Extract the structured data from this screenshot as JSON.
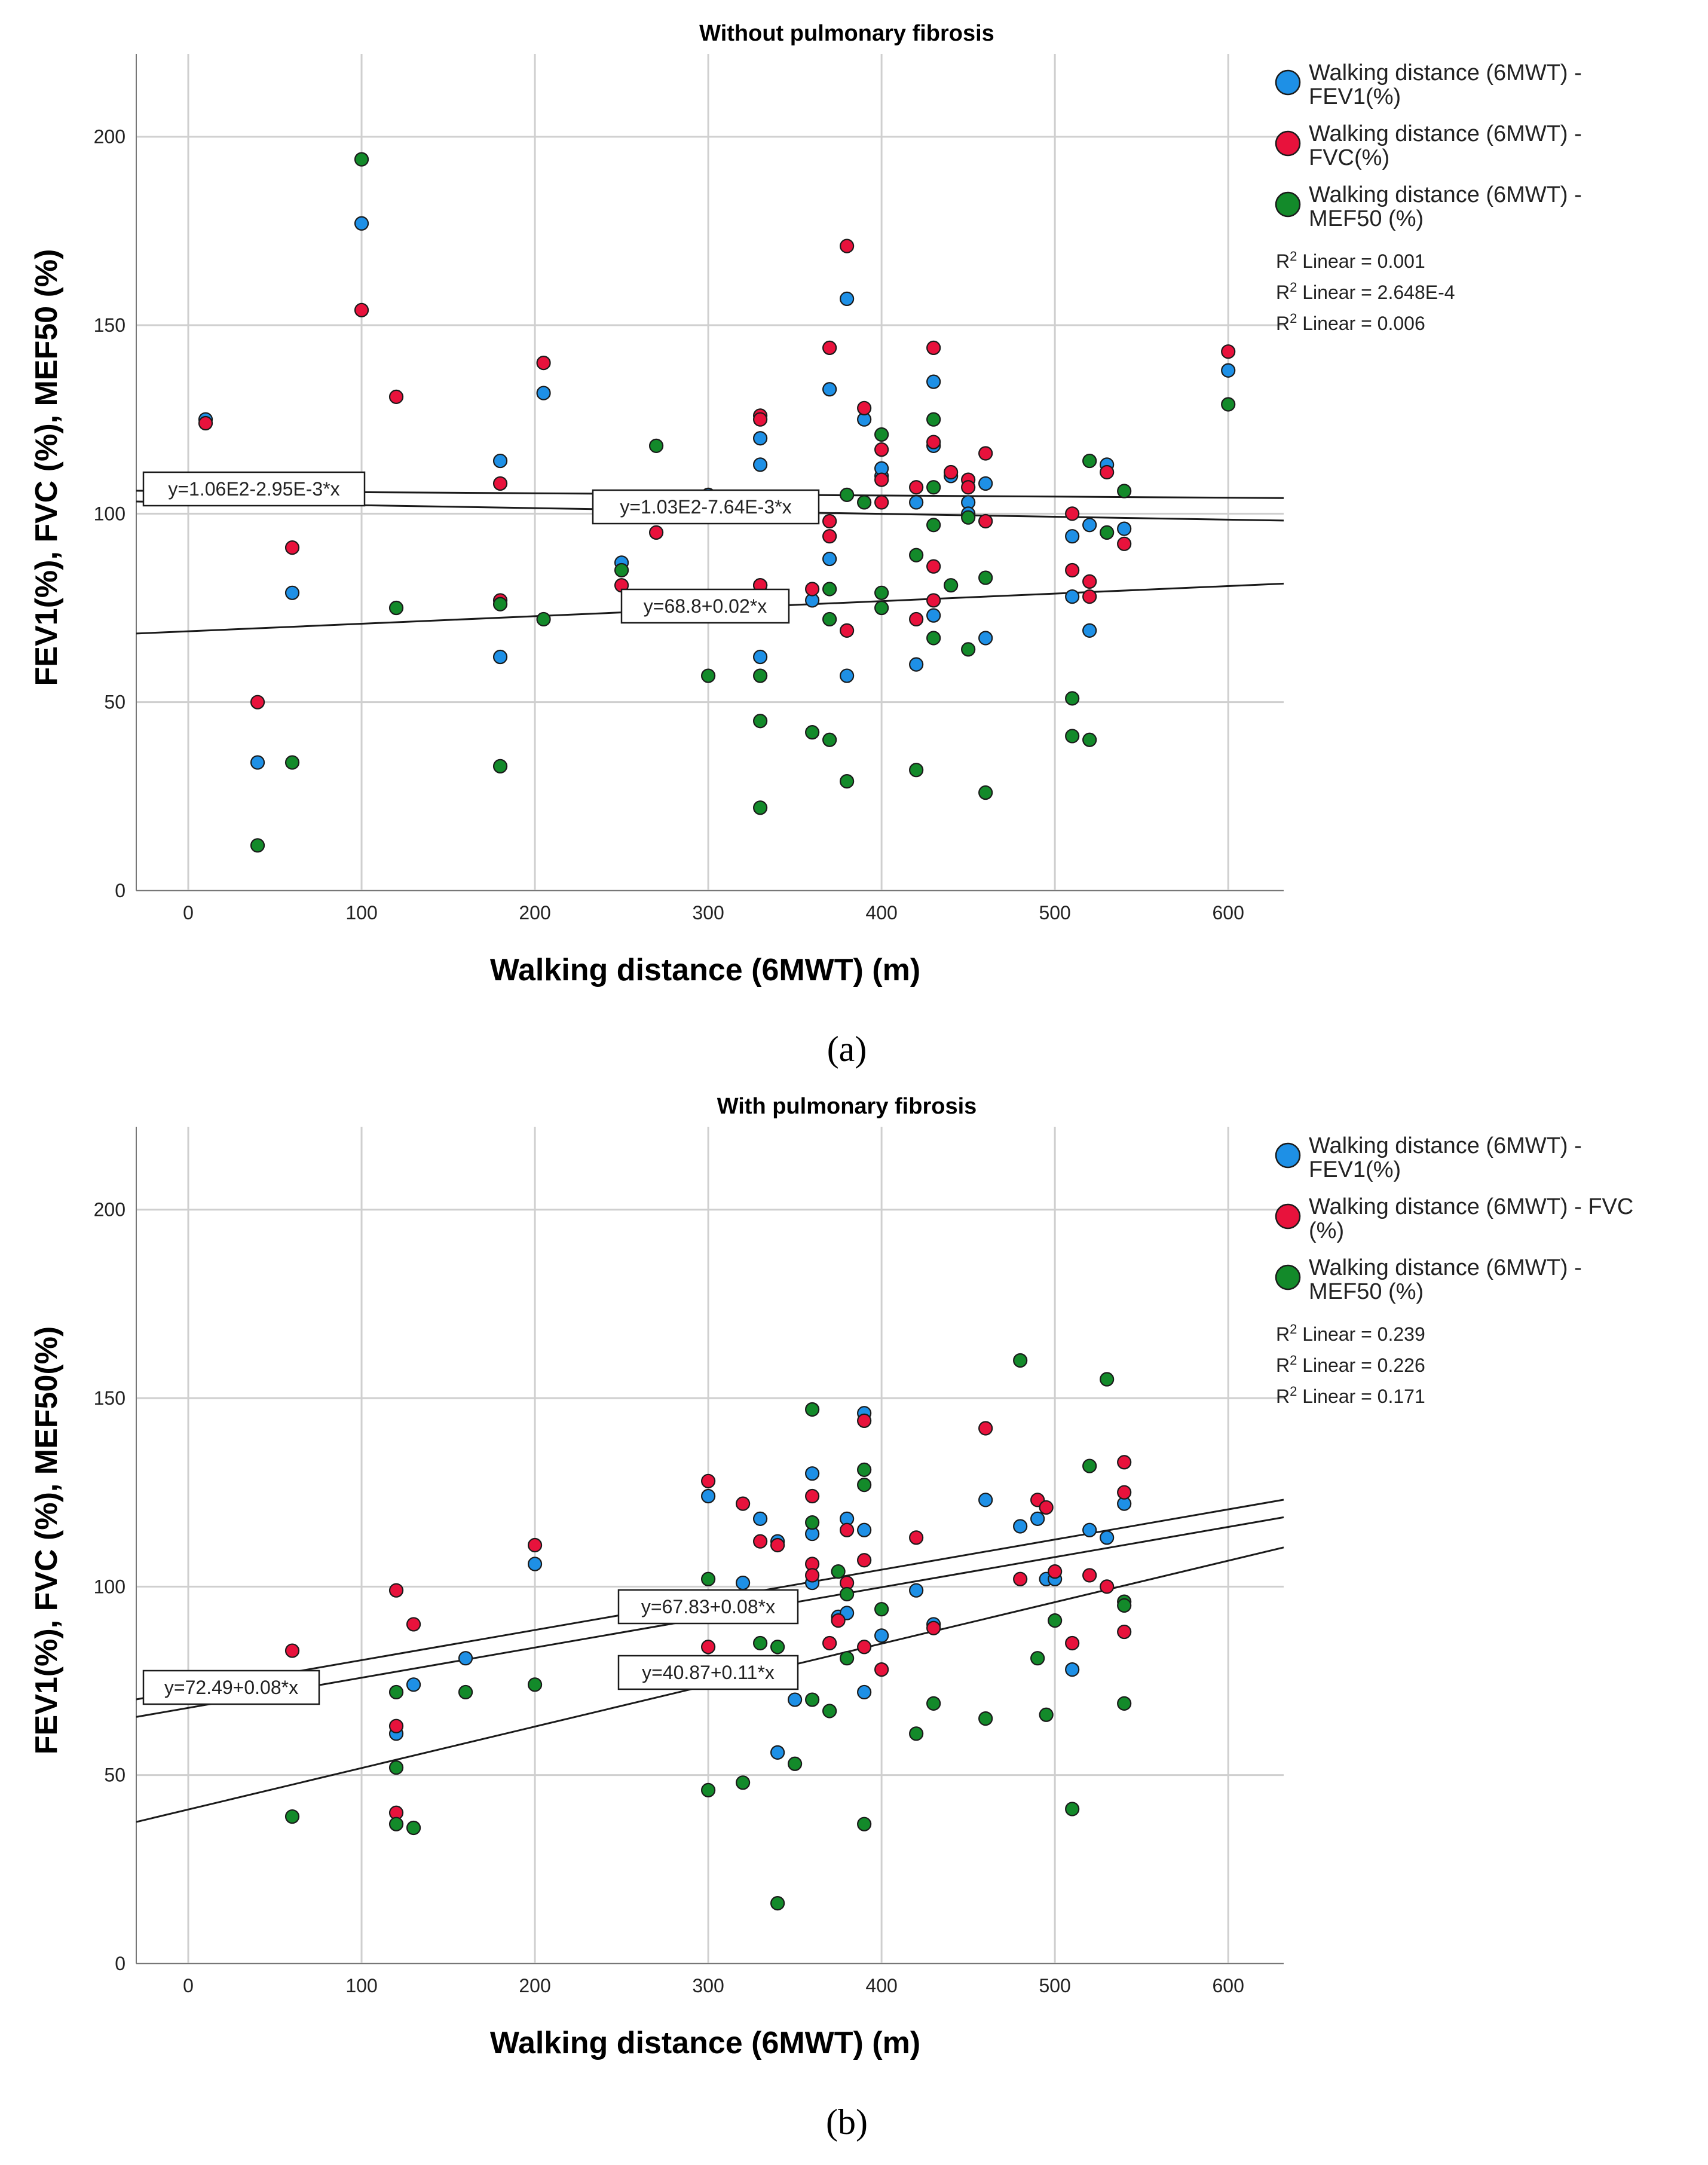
{
  "chart_data": [
    {
      "type": "scatter",
      "panel_label": "(a)",
      "title": "Without pulmonary fibrosis",
      "xlabel": "Walking distance (6MWT) (m)",
      "ylabel": "FEV1(%), FVC (%), MEF50 (%)",
      "xlim": [
        -30,
        632
      ],
      "ylim": [
        0,
        222
      ],
      "xticks": [
        0,
        100,
        200,
        300,
        400,
        500,
        600
      ],
      "yticks": [
        0,
        50,
        100,
        150,
        200
      ],
      "grid": true,
      "legend_position": "top-right outside",
      "series": [
        {
          "name": "Walking distance (6MWT) - FEV1(%)",
          "color": "#1e90e6",
          "r2": "R2 Linear = 0.001",
          "fit": {
            "intercept": 106,
            "slope": -0.00295,
            "label": "y=1.06E2-2.95E-3*x"
          },
          "points": [
            [
              10,
              125
            ],
            [
              40,
              34
            ],
            [
              60,
              79
            ],
            [
              100,
              177
            ],
            [
              180,
              114
            ],
            [
              180,
              62
            ],
            [
              205,
              132
            ],
            [
              250,
              87
            ],
            [
              300,
              105
            ],
            [
              330,
              120
            ],
            [
              330,
              113
            ],
            [
              330,
              62
            ],
            [
              330,
              81
            ],
            [
              360,
              77
            ],
            [
              370,
              133
            ],
            [
              370,
              88
            ],
            [
              380,
              157
            ],
            [
              380,
              57
            ],
            [
              390,
              125
            ],
            [
              400,
              110
            ],
            [
              400,
              112
            ],
            [
              420,
              103
            ],
            [
              420,
              60
            ],
            [
              430,
              135
            ],
            [
              430,
              118
            ],
            [
              430,
              73
            ],
            [
              440,
              110
            ],
            [
              450,
              103
            ],
            [
              450,
              100
            ],
            [
              460,
              108
            ],
            [
              460,
              67
            ],
            [
              510,
              94
            ],
            [
              510,
              78
            ],
            [
              520,
              97
            ],
            [
              520,
              69
            ],
            [
              530,
              113
            ],
            [
              540,
              96
            ],
            [
              600,
              138
            ]
          ]
        },
        {
          "name": "Walking distance (6MWT) - FVC(%)",
          "color": "#e8123c",
          "r2": "R2 Linear = 2.648E-4",
          "fit": {
            "intercept": 103,
            "slope": -0.00764,
            "label": "y=1.03E2-7.64E-3*x"
          },
          "points": [
            [
              10,
              124
            ],
            [
              40,
              50
            ],
            [
              60,
              91
            ],
            [
              100,
              154
            ],
            [
              120,
              131
            ],
            [
              180,
              108
            ],
            [
              180,
              77
            ],
            [
              205,
              140
            ],
            [
              250,
              81
            ],
            [
              270,
              95
            ],
            [
              330,
              126
            ],
            [
              330,
              125
            ],
            [
              330,
              81
            ],
            [
              360,
              80
            ],
            [
              370,
              144
            ],
            [
              370,
              98
            ],
            [
              370,
              94
            ],
            [
              380,
              171
            ],
            [
              380,
              69
            ],
            [
              390,
              128
            ],
            [
              400,
              117
            ],
            [
              400,
              103
            ],
            [
              400,
              109
            ],
            [
              420,
              107
            ],
            [
              420,
              72
            ],
            [
              430,
              144
            ],
            [
              430,
              119
            ],
            [
              430,
              86
            ],
            [
              430,
              77
            ],
            [
              440,
              111
            ],
            [
              450,
              109
            ],
            [
              450,
              107
            ],
            [
              460,
              116
            ],
            [
              460,
              98
            ],
            [
              510,
              100
            ],
            [
              510,
              85
            ],
            [
              520,
              82
            ],
            [
              520,
              78
            ],
            [
              530,
              111
            ],
            [
              540,
              92
            ],
            [
              600,
              143
            ]
          ]
        },
        {
          "name": "Walking distance (6MWT) - MEF50 (%)",
          "color": "#138a2a",
          "r2": "R2 Linear = 0.006",
          "fit": {
            "intercept": 68.8,
            "slope": 0.02,
            "label": "y=68.8+0.02*x"
          },
          "points": [
            [
              40,
              12
            ],
            [
              60,
              34
            ],
            [
              100,
              194
            ],
            [
              120,
              75
            ],
            [
              180,
              76
            ],
            [
              180,
              33
            ],
            [
              205,
              72
            ],
            [
              250,
              85
            ],
            [
              270,
              118
            ],
            [
              300,
              57
            ],
            [
              330,
              57
            ],
            [
              330,
              45
            ],
            [
              330,
              22
            ],
            [
              360,
              42
            ],
            [
              370,
              80
            ],
            [
              370,
              72
            ],
            [
              370,
              40
            ],
            [
              380,
              105
            ],
            [
              380,
              29
            ],
            [
              390,
              103
            ],
            [
              400,
              121
            ],
            [
              400,
              79
            ],
            [
              400,
              75
            ],
            [
              420,
              89
            ],
            [
              420,
              32
            ],
            [
              430,
              125
            ],
            [
              430,
              107
            ],
            [
              430,
              97
            ],
            [
              430,
              67
            ],
            [
              440,
              81
            ],
            [
              450,
              99
            ],
            [
              450,
              64
            ],
            [
              460,
              83
            ],
            [
              460,
              26
            ],
            [
              510,
              51
            ],
            [
              510,
              41
            ],
            [
              520,
              114
            ],
            [
              520,
              40
            ],
            [
              530,
              95
            ],
            [
              540,
              106
            ],
            [
              600,
              129
            ]
          ]
        }
      ]
    },
    {
      "type": "scatter",
      "panel_label": "(b)",
      "title": "With pulmonary fibrosis",
      "xlabel": "Walking distance (6MWT) (m)",
      "ylabel": "FEV1(%), FVC (%), MEF50(%)",
      "xlim": [
        -30,
        632
      ],
      "ylim": [
        0,
        222
      ],
      "xticks": [
        0,
        100,
        200,
        300,
        400,
        500,
        600
      ],
      "yticks": [
        0,
        50,
        100,
        150,
        200
      ],
      "grid": true,
      "legend_position": "top-right outside",
      "series": [
        {
          "name": "Walking distance (6MWT) - FEV1(%)",
          "color": "#1e90e6",
          "r2": "R2 Linear = 0.239",
          "fit": {
            "intercept": 72.49,
            "slope": 0.08,
            "label": "y=72.49+0.08*x"
          },
          "points": [
            [
              120,
              61
            ],
            [
              130,
              74
            ],
            [
              160,
              81
            ],
            [
              200,
              106
            ],
            [
              300,
              124
            ],
            [
              300,
              80
            ],
            [
              320,
              101
            ],
            [
              330,
              118
            ],
            [
              340,
              112
            ],
            [
              340,
              56
            ],
            [
              350,
              70
            ],
            [
              360,
              130
            ],
            [
              360,
              114
            ],
            [
              360,
              101
            ],
            [
              375,
              92
            ],
            [
              380,
              118
            ],
            [
              380,
              93
            ],
            [
              390,
              146
            ],
            [
              390,
              115
            ],
            [
              390,
              72
            ],
            [
              400,
              87
            ],
            [
              420,
              99
            ],
            [
              430,
              90
            ],
            [
              460,
              123
            ],
            [
              480,
              116
            ],
            [
              490,
              118
            ],
            [
              495,
              102
            ],
            [
              500,
              102
            ],
            [
              510,
              78
            ],
            [
              520,
              115
            ],
            [
              530,
              113
            ],
            [
              540,
              122
            ]
          ]
        },
        {
          "name": "Walking distance (6MWT) - FVC (%)",
          "color": "#e8123c",
          "r2": "R2 Linear = 0.226",
          "fit": {
            "intercept": 67.83,
            "slope": 0.08,
            "label": "y=67.83+0.08*x"
          },
          "points": [
            [
              60,
              83
            ],
            [
              120,
              99
            ],
            [
              120,
              63
            ],
            [
              120,
              40
            ],
            [
              130,
              90
            ],
            [
              200,
              111
            ],
            [
              300,
              128
            ],
            [
              300,
              84
            ],
            [
              320,
              122
            ],
            [
              330,
              112
            ],
            [
              340,
              111
            ],
            [
              340,
              80
            ],
            [
              360,
              124
            ],
            [
              360,
              106
            ],
            [
              360,
              103
            ],
            [
              370,
              85
            ],
            [
              375,
              91
            ],
            [
              380,
              115
            ],
            [
              380,
              101
            ],
            [
              390,
              144
            ],
            [
              390,
              107
            ],
            [
              390,
              84
            ],
            [
              400,
              78
            ],
            [
              420,
              113
            ],
            [
              430,
              89
            ],
            [
              460,
              142
            ],
            [
              480,
              102
            ],
            [
              490,
              123
            ],
            [
              495,
              121
            ],
            [
              500,
              104
            ],
            [
              510,
              85
            ],
            [
              520,
              103
            ],
            [
              530,
              100
            ],
            [
              540,
              133
            ],
            [
              540,
              125
            ],
            [
              540,
              88
            ]
          ]
        },
        {
          "name": "Walking distance (6MWT) - MEF50 (%)",
          "color": "#138a2a",
          "r2": "R2 Linear = 0.171",
          "fit": {
            "intercept": 40.87,
            "slope": 0.11,
            "label": "y=40.87+0.11*x"
          },
          "points": [
            [
              60,
              39
            ],
            [
              120,
              72
            ],
            [
              120,
              52
            ],
            [
              120,
              37
            ],
            [
              130,
              36
            ],
            [
              160,
              72
            ],
            [
              200,
              74
            ],
            [
              300,
              102
            ],
            [
              300,
              46
            ],
            [
              320,
              48
            ],
            [
              330,
              85
            ],
            [
              340,
              84
            ],
            [
              340,
              16
            ],
            [
              350,
              53
            ],
            [
              360,
              147
            ],
            [
              360,
              117
            ],
            [
              360,
              70
            ],
            [
              370,
              67
            ],
            [
              375,
              104
            ],
            [
              380,
              81
            ],
            [
              380,
              98
            ],
            [
              390,
              131
            ],
            [
              390,
              127
            ],
            [
              390,
              37
            ],
            [
              400,
              94
            ],
            [
              420,
              61
            ],
            [
              430,
              69
            ],
            [
              460,
              65
            ],
            [
              480,
              160
            ],
            [
              490,
              81
            ],
            [
              495,
              66
            ],
            [
              500,
              91
            ],
            [
              510,
              41
            ],
            [
              520,
              132
            ],
            [
              530,
              155
            ],
            [
              540,
              96
            ],
            [
              540,
              95
            ],
            [
              540,
              69
            ]
          ]
        }
      ]
    }
  ]
}
